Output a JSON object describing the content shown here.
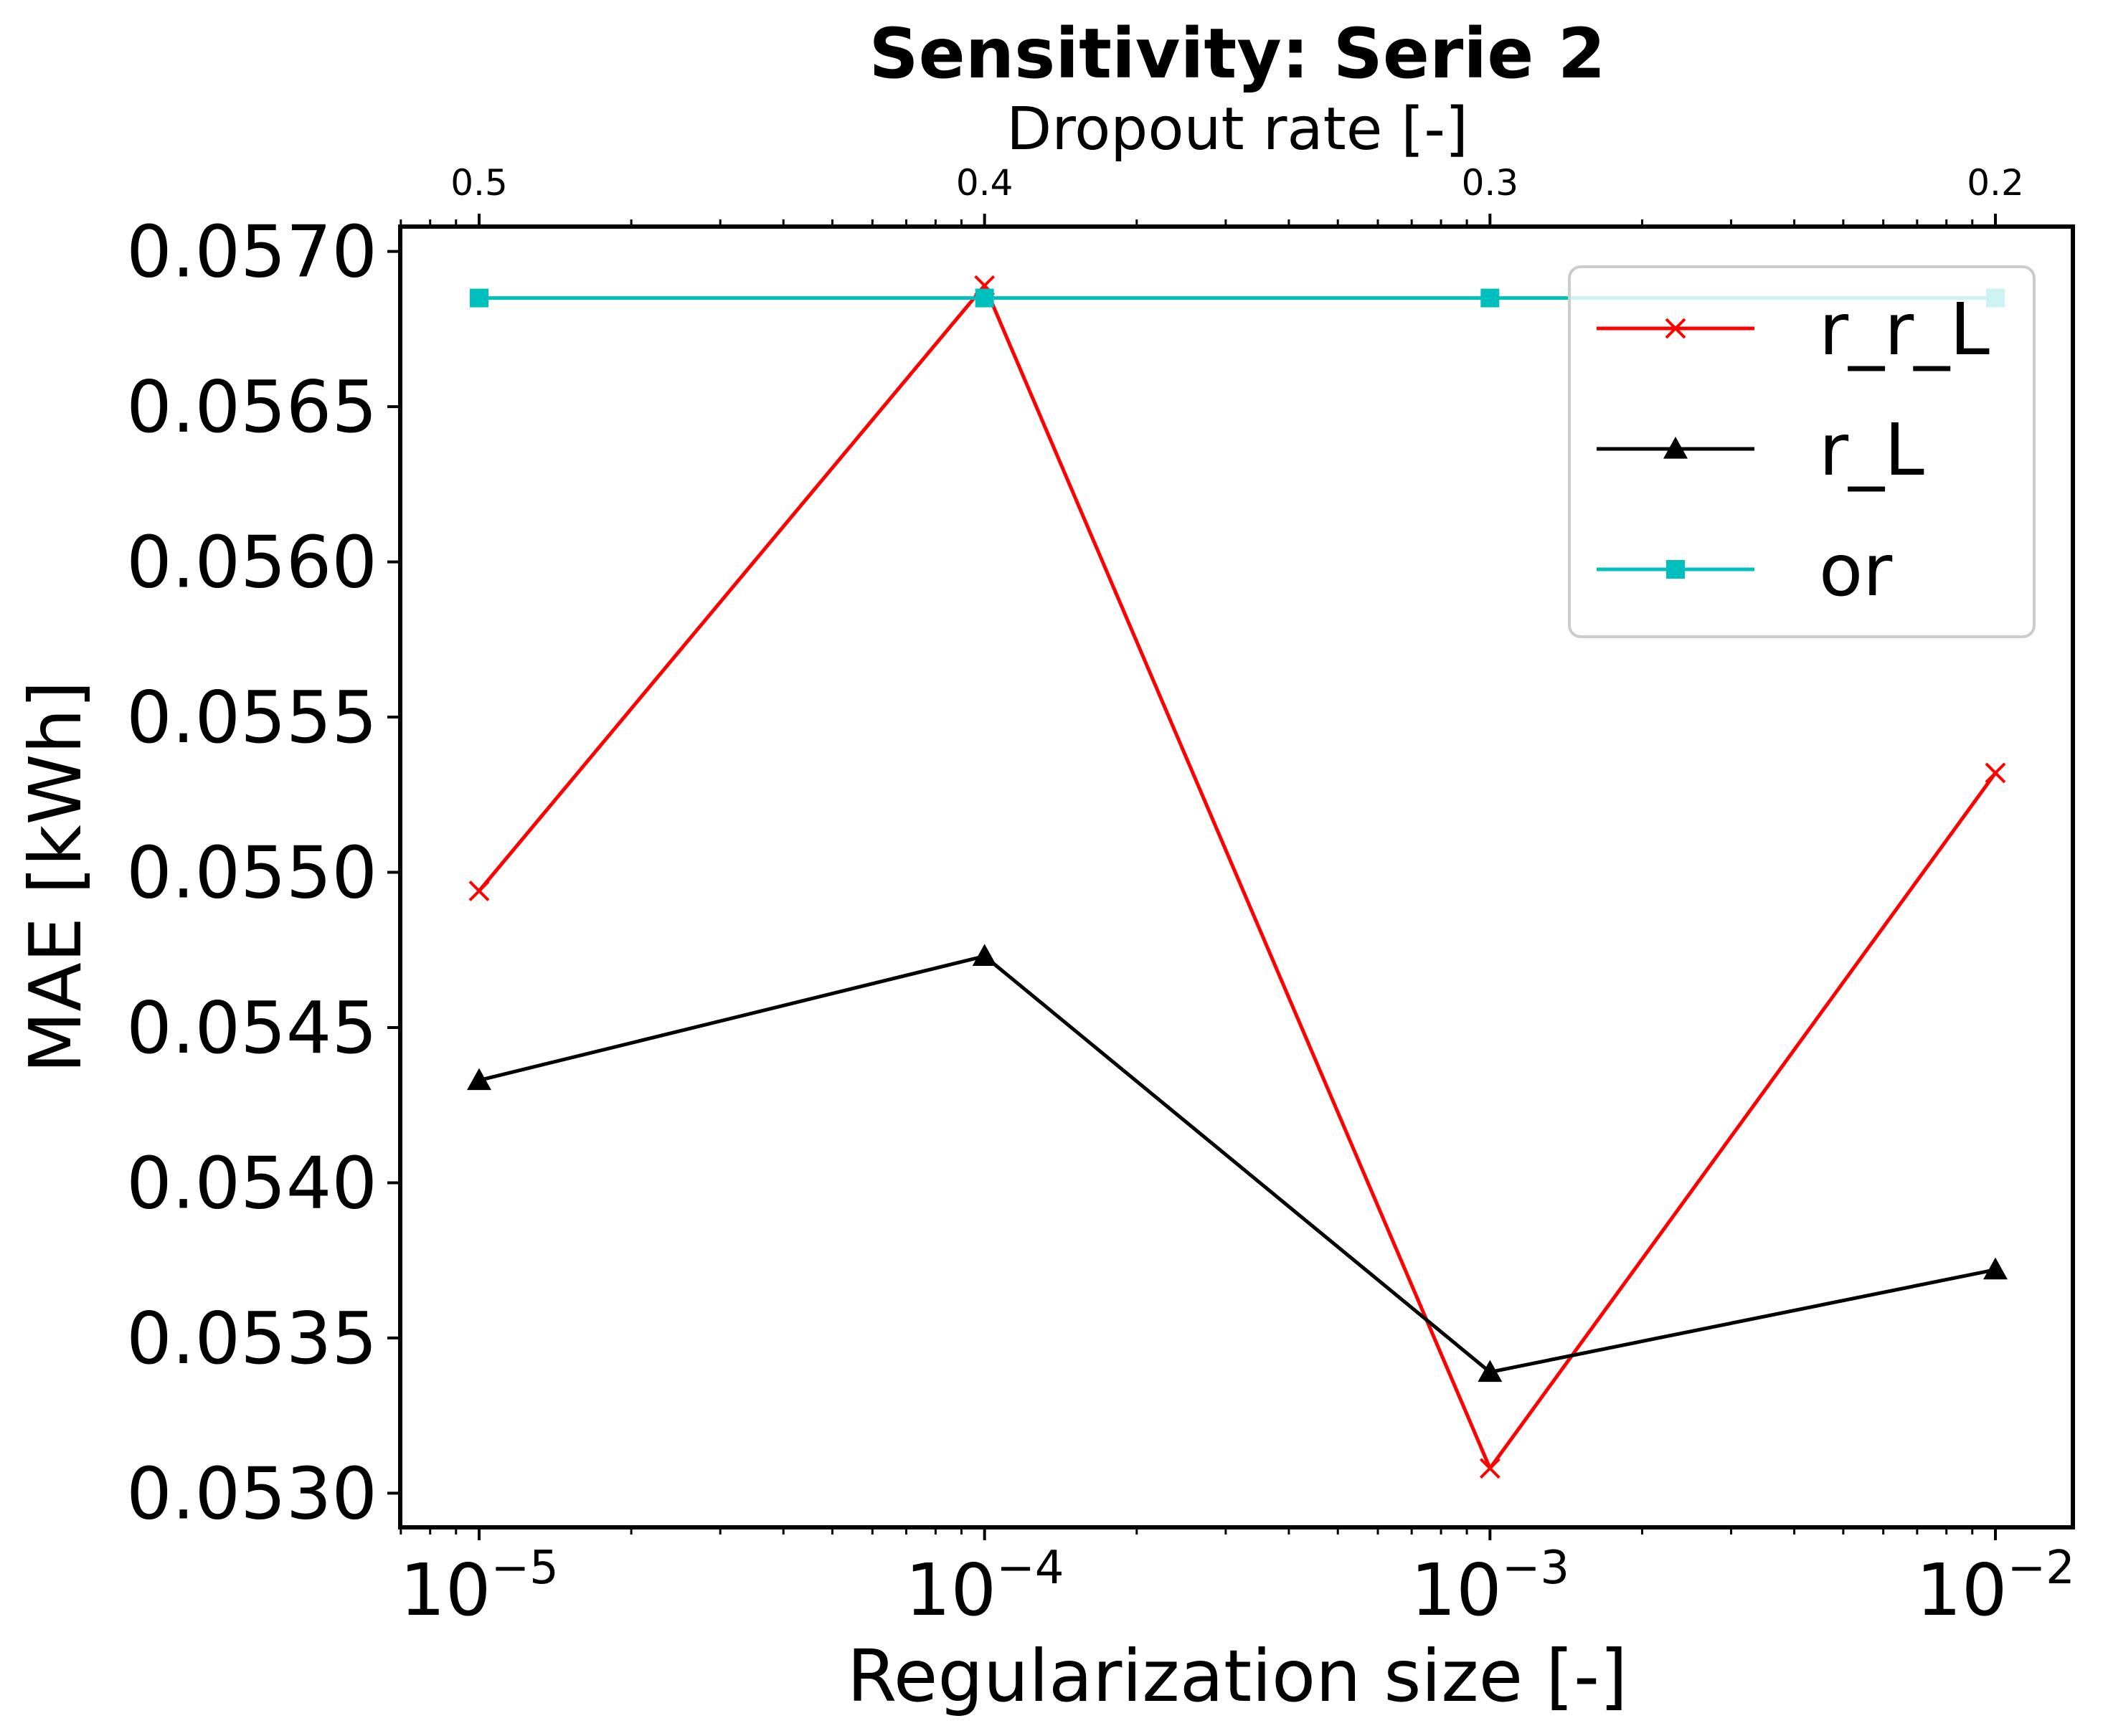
{
  "chart_data": {
    "type": "line",
    "title": "Sensitivity: Serie 2",
    "xlabel": "Regularization size [-]",
    "ylabel": "MAE [kWh]",
    "x_scale": "log",
    "x": [
      1e-05,
      0.0001,
      0.001,
      0.01
    ],
    "x_tick_labels": [
      {
        "base": "10",
        "exp": "−5"
      },
      {
        "base": "10",
        "exp": "−4"
      },
      {
        "base": "10",
        "exp": "−3"
      },
      {
        "base": "10",
        "exp": "−2"
      }
    ],
    "x_top_label": "Dropout rate [-]",
    "x_top_ticks": [
      "0.5",
      "0.4",
      "0.3",
      "0.2"
    ],
    "ylim": [
      0.05289,
      0.05708
    ],
    "y_ticks": [
      "0.0530",
      "0.0535",
      "0.0540",
      "0.0545",
      "0.0550",
      "0.0555",
      "0.0560",
      "0.0565",
      "0.0570"
    ],
    "grid": false,
    "legend_position": "top-right",
    "series": [
      {
        "name": "r_r_L",
        "color": "#ff0000",
        "marker": "x",
        "values": [
          0.05494,
          0.05689,
          0.05308,
          0.05532
        ]
      },
      {
        "name": "r_L",
        "color": "#000000",
        "marker": "triangle",
        "values": [
          0.05433,
          0.05473,
          0.05339,
          0.05372
        ]
      },
      {
        "name": "or",
        "color": "#00bfbf",
        "marker": "square",
        "values": [
          0.05685,
          0.05685,
          0.05685,
          0.05685
        ]
      }
    ]
  }
}
